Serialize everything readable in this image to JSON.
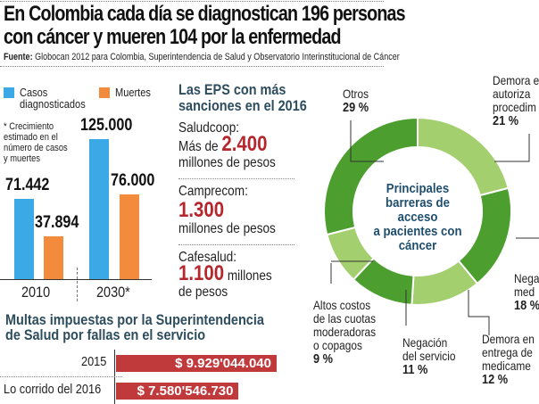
{
  "header": {
    "title_line1": "En Colombia cada día se diagnostican 196 personas",
    "title_line2": "con cáncer y mueren 104 por la enfermedad",
    "source_label": "Fuente:",
    "source_text": "Globocan 2012 para Colombia, Superintendencia de Salud y Observatorio Interinstitucional de Cáncer"
  },
  "chart_data": [
    {
      "type": "bar",
      "categories": [
        "2010",
        "2030*"
      ],
      "series": [
        {
          "name": "Casos diagnosticados",
          "values": [
            71442,
            125000
          ],
          "labels": [
            "71.442",
            "125.000"
          ],
          "color": "#3aa9e6"
        },
        {
          "name": "Muertes",
          "values": [
            37894,
            76000
          ],
          "labels": [
            "37.894",
            "76.000"
          ],
          "color": "#f28b3c"
        }
      ],
      "legend": [
        "Casos",
        "diagnosticados",
        "Muertes"
      ],
      "note": [
        "* Crecimiento",
        "estimado en el",
        "número de casos",
        "y muertes"
      ]
    },
    {
      "type": "pie",
      "title": [
        "Principales",
        "barreras de acceso",
        "a pacientes con",
        "cáncer"
      ],
      "slices": [
        {
          "label": [
            "Demora e",
            "autoriza",
            "procedim"
          ],
          "value": 21,
          "pct": "21 %",
          "color": "#a3cf6f"
        },
        {
          "label": [
            "Nega",
            "med"
          ],
          "value": 18,
          "pct": "18 %",
          "color": "#4c9e2f"
        },
        {
          "label": [
            "Demora en",
            "entrega de",
            "medicame"
          ],
          "value": 12,
          "pct": "12 %",
          "color": "#a3cf6f"
        },
        {
          "label": [
            "Negación",
            "del servicio"
          ],
          "value": 11,
          "pct": "11 %",
          "color": "#4c9e2f"
        },
        {
          "label": [
            "Altos costos",
            "de las cuotas",
            "moderadoras",
            "o copagos"
          ],
          "value": 9,
          "pct": "9 %",
          "color": "#a3cf6f"
        },
        {
          "label": [
            "Otros"
          ],
          "value": 29,
          "pct": "29 %",
          "color": "#4c9e2f"
        }
      ]
    },
    {
      "type": "bar",
      "title": [
        "Multas impuestas por la Superintendencia",
        "de Salud por fallas en el servicio"
      ],
      "categories": [
        "2015",
        "Lo corrido del 2016"
      ],
      "values": [
        9929044040,
        7580546730
      ],
      "labels": [
        "$ 9.929'044.040",
        "$ 7.580'546.730"
      ],
      "color": "#c0393b"
    }
  ],
  "eps": {
    "title1": "Las EPS con más",
    "title2": "sanciones en el 2016",
    "items": [
      {
        "name": "Saludcoop:",
        "pre": "Más de ",
        "amount": "2.400",
        "unit": "millones de pesos"
      },
      {
        "name": "Camprecom:",
        "pre": "",
        "amount": "1.300",
        "unit": "millones de pesos"
      },
      {
        "name": "Cafesalud:",
        "pre": "",
        "amount": "1.100",
        "unit": " millones",
        "unit2": "de pesos"
      }
    ]
  }
}
